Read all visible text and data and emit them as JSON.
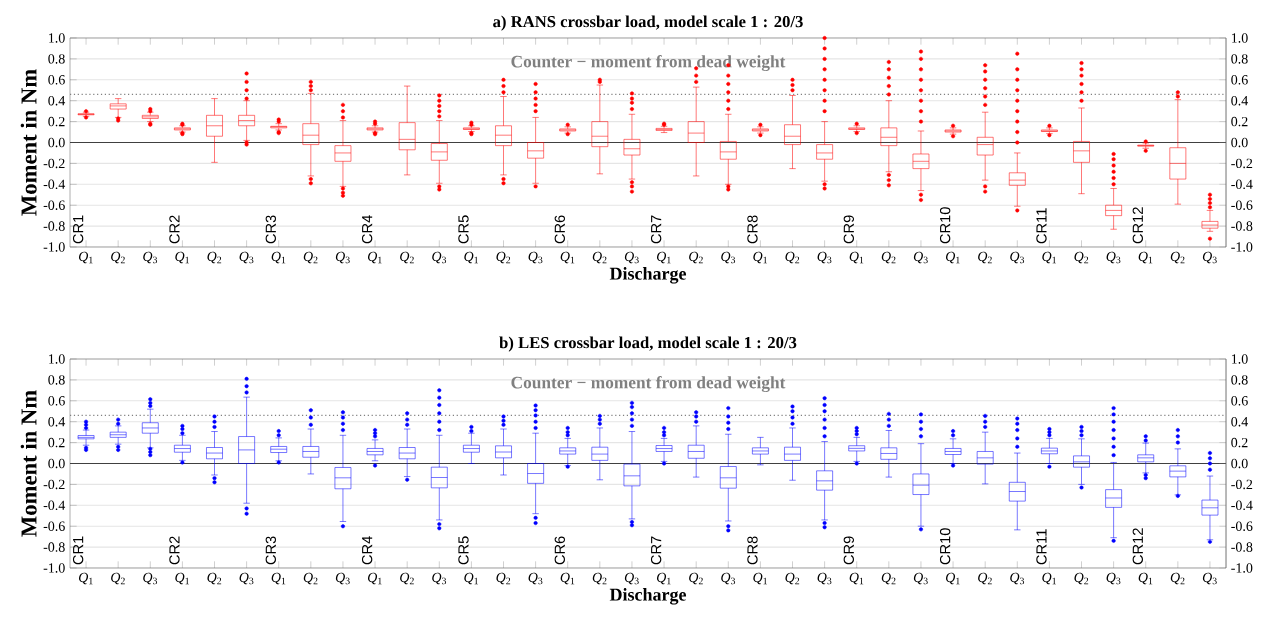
{
  "chart_data": [
    {
      "type": "box",
      "title": "a) RANS crossbar load, model scale 1 : 20/3",
      "xlabel": "Discharge",
      "ylabel": "Moment in Nm",
      "color": "#ff0000",
      "grid": "y",
      "categories": [
        "*Q*$_{1}$",
        "*Q*$_{2}$",
        "*Q*$_{3}$",
        "*Q*$_{1}$",
        "*Q*$_{2}$",
        "*Q*$_{3}$",
        "*Q*$_{1}$",
        "*Q*$_{2}$",
        "*Q*$_{3}$",
        "*Q*$_{1}$",
        "*Q*$_{2}$",
        "*Q*$_{3}$",
        "*Q*$_{1}$",
        "*Q*$_{2}$",
        "*Q*$_{3}$",
        "*Q*$_{1}$",
        "*Q*$_{2}$",
        "*Q*$_{3}$",
        "*Q*$_{1}$",
        "*Q*$_{2}$",
        "*Q*$_{3}$",
        "*Q*$_{1}$",
        "*Q*$_{2}$",
        "*Q*$_{3}$",
        "*Q*$_{1}$",
        "*Q*$_{2}$",
        "*Q*$_{3}$",
        "*Q*$_{1}$",
        "*Q*$_{2}$",
        "*Q*$_{3}$",
        "*Q*$_{1}$",
        "*Q*$_{2}$",
        "*Q*$_{3}$",
        "*Q*$_{1}$",
        "*Q*$_{2}$",
        "*Q*$_{3}$"
      ],
      "boxes": [
        {
          "low": 0.25,
          "q1": 0.265,
          "median": 0.27,
          "q3": 0.275,
          "high": 0.29,
          "outliers": [
            0.24,
            0.3
          ]
        },
        {
          "low": 0.24,
          "q1": 0.32,
          "median": 0.35,
          "q3": 0.37,
          "high": 0.42,
          "outliers": [
            0.21,
            0.23
          ]
        },
        {
          "low": 0.2,
          "q1": 0.23,
          "median": 0.245,
          "q3": 0.26,
          "high": 0.29,
          "outliers": [
            0.17,
            0.18,
            0.3,
            0.32
          ]
        },
        {
          "low": 0.1,
          "q1": 0.12,
          "median": 0.13,
          "q3": 0.14,
          "high": 0.16,
          "outliers": [
            0.08,
            0.09,
            0.17,
            0.18
          ]
        },
        {
          "low": -0.19,
          "q1": 0.06,
          "median": 0.16,
          "q3": 0.26,
          "high": 0.42
        },
        {
          "low": 0.02,
          "q1": 0.16,
          "median": 0.21,
          "q3": 0.26,
          "high": 0.4,
          "outliers": [
            -0.02,
            0.0,
            0.42,
            0.5,
            0.58,
            0.66
          ]
        },
        {
          "low": 0.12,
          "q1": 0.14,
          "median": 0.15,
          "q3": 0.155,
          "high": 0.18,
          "outliers": [
            0.09,
            0.1,
            0.2,
            0.22
          ]
        },
        {
          "low": -0.32,
          "q1": -0.02,
          "median": 0.07,
          "q3": 0.18,
          "high": 0.47,
          "outliers": [
            -0.39,
            -0.35,
            0.5,
            0.54,
            0.58
          ]
        },
        {
          "low": -0.42,
          "q1": -0.18,
          "median": -0.1,
          "q3": -0.03,
          "high": 0.21,
          "outliers": [
            -0.51,
            -0.48,
            -0.44,
            0.24,
            0.3,
            0.36
          ]
        },
        {
          "low": 0.1,
          "q1": 0.12,
          "median": 0.13,
          "q3": 0.14,
          "high": 0.16,
          "outliers": [
            0.08,
            0.09,
            0.18,
            0.2
          ]
        },
        {
          "low": -0.31,
          "q1": -0.07,
          "median": 0.03,
          "q3": 0.19,
          "high": 0.54
        },
        {
          "low": -0.39,
          "q1": -0.17,
          "median": -0.09,
          "q3": -0.01,
          "high": 0.21,
          "outliers": [
            -0.45,
            -0.42,
            0.25,
            0.3,
            0.35,
            0.4,
            0.45
          ]
        },
        {
          "low": 0.105,
          "q1": 0.125,
          "median": 0.13,
          "q3": 0.14,
          "high": 0.16,
          "outliers": [
            0.08,
            0.09,
            0.17,
            0.19
          ]
        },
        {
          "low": -0.31,
          "q1": -0.03,
          "median": 0.07,
          "q3": 0.16,
          "high": 0.44,
          "outliers": [
            -0.39,
            -0.35,
            0.48,
            0.54,
            0.6
          ]
        },
        {
          "low": -0.39,
          "q1": -0.15,
          "median": -0.08,
          "q3": 0.0,
          "high": 0.24,
          "outliers": [
            -0.42,
            0.3,
            0.36,
            0.42,
            0.48,
            0.56
          ]
        },
        {
          "low": 0.09,
          "q1": 0.11,
          "median": 0.12,
          "q3": 0.13,
          "high": 0.15,
          "outliers": [
            0.08,
            0.17
          ]
        },
        {
          "low": -0.3,
          "q1": -0.04,
          "median": 0.06,
          "q3": 0.2,
          "high": 0.55,
          "outliers": [
            0.58,
            0.6
          ]
        },
        {
          "low": -0.35,
          "q1": -0.12,
          "median": -0.06,
          "q3": 0.03,
          "high": 0.27,
          "outliers": [
            -0.47,
            -0.42,
            -0.38,
            0.32,
            0.38,
            0.42,
            0.47
          ]
        },
        {
          "low": 0.095,
          "q1": 0.115,
          "median": 0.125,
          "q3": 0.135,
          "high": 0.155,
          "outliers": [
            0.17,
            0.18
          ]
        },
        {
          "low": -0.32,
          "q1": 0.0,
          "median": 0.09,
          "q3": 0.2,
          "high": 0.53,
          "outliers": [
            0.58,
            0.64,
            0.71
          ]
        },
        {
          "low": -0.4,
          "q1": -0.16,
          "median": -0.09,
          "q3": 0.01,
          "high": 0.27,
          "outliers": [
            -0.45,
            -0.42,
            0.32,
            0.4,
            0.48,
            0.56,
            0.64,
            0.74
          ]
        },
        {
          "low": 0.09,
          "q1": 0.11,
          "median": 0.12,
          "q3": 0.13,
          "high": 0.15,
          "outliers": [
            0.07,
            0.17
          ]
        },
        {
          "low": -0.25,
          "q1": -0.02,
          "median": 0.06,
          "q3": 0.17,
          "high": 0.45,
          "outliers": [
            0.5,
            0.55,
            0.6
          ]
        },
        {
          "low": -0.37,
          "q1": -0.16,
          "median": -0.1,
          "q3": -0.02,
          "high": 0.2,
          "outliers": [
            -0.44,
            -0.4,
            0.3,
            0.4,
            0.5,
            0.6,
            0.7,
            0.8,
            0.9,
            1.0
          ]
        },
        {
          "low": 0.105,
          "q1": 0.125,
          "median": 0.13,
          "q3": 0.14,
          "high": 0.16,
          "outliers": [
            0.09,
            0.18
          ]
        },
        {
          "low": -0.28,
          "q1": -0.03,
          "median": 0.05,
          "q3": 0.14,
          "high": 0.4,
          "outliers": [
            -0.41,
            -0.36,
            -0.31,
            0.46,
            0.54,
            0.62,
            0.7,
            0.77
          ]
        },
        {
          "low": -0.46,
          "q1": -0.25,
          "median": -0.18,
          "q3": -0.11,
          "high": 0.11,
          "outliers": [
            -0.55,
            -0.5,
            0.2,
            0.3,
            0.4,
            0.5,
            0.6,
            0.7,
            0.8,
            0.87
          ]
        },
        {
          "low": 0.08,
          "q1": 0.1,
          "median": 0.11,
          "q3": 0.12,
          "high": 0.14,
          "outliers": [
            0.06,
            0.16
          ]
        },
        {
          "low": -0.36,
          "q1": -0.12,
          "median": -0.02,
          "q3": 0.05,
          "high": 0.29,
          "outliers": [
            -0.47,
            -0.42,
            0.36,
            0.44,
            0.52,
            0.6,
            0.68,
            0.74
          ]
        },
        {
          "low": -0.61,
          "q1": -0.41,
          "median": -0.36,
          "q3": -0.29,
          "high": -0.1,
          "outliers": [
            -0.65,
            0.0,
            0.1,
            0.2,
            0.3,
            0.4,
            0.5,
            0.6,
            0.7,
            0.85
          ]
        },
        {
          "low": 0.085,
          "q1": 0.105,
          "median": 0.11,
          "q3": 0.12,
          "high": 0.14,
          "outliers": [
            0.07,
            0.16
          ]
        },
        {
          "low": -0.49,
          "q1": -0.19,
          "median": -0.08,
          "q3": 0.01,
          "high": 0.33,
          "outliers": [
            0.4,
            0.48,
            0.56,
            0.64,
            0.7,
            0.76
          ]
        },
        {
          "low": -0.83,
          "q1": -0.7,
          "median": -0.65,
          "q3": -0.6,
          "high": -0.44,
          "outliers": [
            -0.4,
            -0.34,
            -0.28,
            -0.22,
            -0.16,
            -0.11
          ]
        },
        {
          "low": -0.055,
          "q1": -0.035,
          "median": -0.03,
          "q3": -0.025,
          "high": -0.005,
          "outliers": [
            -0.08,
            0.01
          ]
        },
        {
          "low": -0.59,
          "q1": -0.35,
          "median": -0.2,
          "q3": -0.05,
          "high": 0.41,
          "outliers": [
            0.44,
            0.48
          ]
        },
        {
          "low": -0.85,
          "q1": -0.82,
          "median": -0.79,
          "q3": -0.755,
          "high": -0.65,
          "outliers": [
            -0.92,
            -0.62,
            -0.58,
            -0.54,
            -0.5
          ]
        }
      ],
      "ylim": [
        -1,
        1
      ],
      "yticks": [
        {
          "value": -1,
          "label": "-1.0"
        },
        {
          "value": -0.8,
          "label": "-0.8"
        },
        {
          "value": -0.6,
          "label": "-0.6"
        },
        {
          "value": -0.4,
          "label": "-0.4"
        },
        {
          "value": -0.2,
          "label": "-0.2"
        },
        {
          "value": 0,
          "label": "0.0"
        },
        {
          "value": 0.2,
          "label": "0.2"
        },
        {
          "value": 0.4,
          "label": "0.4"
        },
        {
          "value": 0.6,
          "label": "0.6"
        },
        {
          "value": 0.8,
          "label": "0.8"
        },
        {
          "value": 1,
          "label": "1.0"
        }
      ],
      "y2lim": [
        -1,
        1
      ],
      "y2ticks": [
        {
          "value": -1,
          "label": "-1.0"
        },
        {
          "value": -0.8,
          "label": "-0.8"
        },
        {
          "value": -0.6,
          "label": "-0.6"
        },
        {
          "value": -0.4,
          "label": "-0.4"
        },
        {
          "value": -0.2,
          "label": "-0.2"
        },
        {
          "value": 0,
          "label": "0.0"
        },
        {
          "value": 0.2,
          "label": "0.2"
        },
        {
          "value": 0.4,
          "label": "0.4"
        },
        {
          "value": 0.6,
          "label": "0.6"
        },
        {
          "value": 0.8,
          "label": "0.8"
        },
        {
          "value": 1,
          "label": "1.0"
        }
      ],
      "ref_lines": [
        {
          "axis": "y",
          "value": 0,
          "color": "#404040",
          "line_style": "solid"
        },
        {
          "axis": "y",
          "value": 0.46,
          "label": "Counter − moment from dead weight",
          "color": "#808080",
          "line_style": "dotted"
        }
      ],
      "annotations": [
        "CR1",
        "CR2",
        "CR3",
        "CR4",
        "CR5",
        "CR6",
        "CR7",
        "CR8",
        "CR9",
        "CR10",
        "CR11",
        "CR12"
      ]
    },
    {
      "type": "box",
      "title": "b) LES crossbar load, model scale 1 : 20/3",
      "xlabel": "Discharge",
      "ylabel": "Moment in Nm",
      "color": "#0000ff",
      "grid": "y",
      "categories": [
        "*Q*$_{1}$",
        "*Q*$_{2}$",
        "*Q*$_{3}$",
        "*Q*$_{1}$",
        "*Q*$_{2}$",
        "*Q*$_{3}$",
        "*Q*$_{1}$",
        "*Q*$_{2}$",
        "*Q*$_{3}$",
        "*Q*$_{1}$",
        "*Q*$_{2}$",
        "*Q*$_{3}$",
        "*Q*$_{1}$",
        "*Q*$_{2}$",
        "*Q*$_{3}$",
        "*Q*$_{1}$",
        "*Q*$_{2}$",
        "*Q*$_{3}$",
        "*Q*$_{1}$",
        "*Q*$_{2}$",
        "*Q*$_{3}$",
        "*Q*$_{1}$",
        "*Q*$_{2}$",
        "*Q*$_{3}$",
        "*Q*$_{1}$",
        "*Q*$_{2}$",
        "*Q*$_{3}$",
        "*Q*$_{1}$",
        "*Q*$_{2}$",
        "*Q*$_{3}$",
        "*Q*$_{1}$",
        "*Q*$_{2}$",
        "*Q*$_{3}$",
        "*Q*$_{1}$",
        "*Q*$_{2}$",
        "*Q*$_{3}$"
      ],
      "boxes": [
        {
          "low": 0.175,
          "q1": 0.236,
          "median": 0.25,
          "q3": 0.268,
          "high": 0.32,
          "outliers": [
            0.13,
            0.15,
            0.34,
            0.37,
            0.4
          ]
        },
        {
          "low": 0.185,
          "q1": 0.25,
          "median": 0.275,
          "q3": 0.3,
          "high": 0.36,
          "outliers": [
            0.13,
            0.16,
            0.38,
            0.42
          ]
        },
        {
          "low": 0.15,
          "q1": 0.29,
          "median": 0.34,
          "q3": 0.39,
          "high": 0.52,
          "outliers": [
            0.08,
            0.11,
            0.14,
            0.55,
            0.58,
            0.615
          ]
        },
        {
          "low": 0.03,
          "q1": 0.108,
          "median": 0.143,
          "q3": 0.175,
          "high": 0.27,
          "outliers": [
            0.01,
            0.29,
            0.33,
            0.36
          ]
        },
        {
          "low": -0.11,
          "q1": 0.045,
          "median": 0.1,
          "q3": 0.153,
          "high": 0.306,
          "outliers": [
            -0.18,
            -0.14,
            0.35,
            0.4,
            0.45
          ]
        },
        {
          "low": -0.38,
          "q1": 0.0,
          "median": 0.13,
          "q3": 0.258,
          "high": 0.635,
          "outliers": [
            -0.48,
            -0.43,
            0.68,
            0.74,
            0.81
          ]
        },
        {
          "low": 0.026,
          "q1": 0.105,
          "median": 0.137,
          "q3": 0.163,
          "high": 0.245,
          "outliers": [
            0.01,
            0.27,
            0.31
          ]
        },
        {
          "low": -0.1,
          "q1": 0.06,
          "median": 0.115,
          "q3": 0.163,
          "high": 0.33,
          "outliers": [
            0.37,
            0.44,
            0.51
          ]
        },
        {
          "low": -0.555,
          "q1": -0.242,
          "median": -0.137,
          "q3": -0.038,
          "high": 0.27,
          "outliers": [
            -0.6,
            0.32,
            0.38,
            0.44,
            0.49
          ]
        },
        {
          "low": 0.026,
          "q1": 0.083,
          "median": 0.115,
          "q3": 0.144,
          "high": 0.226,
          "outliers": [
            -0.02,
            0.26,
            0.29,
            0.32
          ]
        },
        {
          "low": -0.125,
          "q1": 0.045,
          "median": 0.1,
          "q3": 0.153,
          "high": 0.33,
          "outliers": [
            -0.155,
            0.37,
            0.42,
            0.48
          ]
        },
        {
          "low": -0.54,
          "q1": -0.233,
          "median": -0.134,
          "q3": -0.035,
          "high": 0.27,
          "outliers": [
            -0.62,
            -0.58,
            0.32,
            0.4,
            0.48,
            0.56,
            0.63,
            0.7
          ]
        },
        {
          "low": 0.0,
          "q1": 0.108,
          "median": 0.143,
          "q3": 0.175,
          "high": 0.29,
          "outliers": [
            0.31,
            0.35
          ]
        },
        {
          "low": -0.11,
          "q1": 0.054,
          "median": 0.11,
          "q3": 0.169,
          "high": 0.33,
          "outliers": [
            0.37,
            0.41,
            0.45
          ]
        },
        {
          "low": -0.48,
          "q1": -0.19,
          "median": -0.096,
          "q3": 0.0,
          "high": 0.29,
          "outliers": [
            -0.57,
            -0.52,
            0.34,
            0.4,
            0.46,
            0.51,
            0.555
          ]
        },
        {
          "low": -0.02,
          "q1": 0.09,
          "median": 0.12,
          "q3": 0.15,
          "high": 0.24,
          "outliers": [
            -0.03,
            0.27,
            0.3,
            0.34
          ]
        },
        {
          "low": -0.156,
          "q1": 0.03,
          "median": 0.09,
          "q3": 0.156,
          "high": 0.34,
          "outliers": [
            0.38,
            0.42,
            0.455
          ]
        },
        {
          "low": -0.53,
          "q1": -0.214,
          "median": -0.118,
          "q3": -0.006,
          "high": 0.306,
          "outliers": [
            -0.59,
            -0.56,
            0.36,
            0.42,
            0.48,
            0.54,
            0.58
          ]
        },
        {
          "low": 0.02,
          "q1": 0.115,
          "median": 0.143,
          "q3": 0.172,
          "high": 0.24,
          "outliers": [
            0.0,
            0.27,
            0.3,
            0.34
          ]
        },
        {
          "low": -0.13,
          "q1": 0.05,
          "median": 0.115,
          "q3": 0.175,
          "high": 0.36,
          "outliers": [
            0.4,
            0.45,
            0.49
          ]
        },
        {
          "low": -0.55,
          "q1": -0.236,
          "median": -0.137,
          "q3": -0.029,
          "high": 0.28,
          "outliers": [
            -0.64,
            -0.6,
            0.33,
            0.39,
            0.45,
            0.53
          ]
        },
        {
          "low": -0.013,
          "q1": 0.09,
          "median": 0.12,
          "q3": 0.15,
          "high": 0.25
        },
        {
          "low": -0.16,
          "q1": 0.03,
          "median": 0.09,
          "q3": 0.156,
          "high": 0.34,
          "outliers": [
            0.38,
            0.44,
            0.5,
            0.545
          ]
        },
        {
          "low": -0.54,
          "q1": -0.255,
          "median": -0.166,
          "q3": -0.07,
          "high": 0.21,
          "outliers": [
            -0.61,
            -0.57,
            0.26,
            0.34,
            0.42,
            0.5,
            0.56,
            0.625
          ]
        },
        {
          "low": 0.02,
          "q1": 0.12,
          "median": 0.145,
          "q3": 0.17,
          "high": 0.25,
          "outliers": [
            0.0,
            0.28,
            0.31,
            0.34
          ]
        },
        {
          "low": -0.13,
          "q1": 0.04,
          "median": 0.096,
          "q3": 0.15,
          "high": 0.316,
          "outliers": [
            0.36,
            0.42,
            0.475
          ]
        },
        {
          "low": -0.6,
          "q1": -0.297,
          "median": -0.207,
          "q3": -0.1,
          "high": 0.19,
          "outliers": [
            -0.63,
            0.26,
            0.33,
            0.4,
            0.47
          ]
        },
        {
          "low": 0.0,
          "q1": 0.086,
          "median": 0.115,
          "q3": 0.144,
          "high": 0.236,
          "outliers": [
            -0.02,
            0.27,
            0.31
          ]
        },
        {
          "low": -0.195,
          "q1": -0.006,
          "median": 0.054,
          "q3": 0.115,
          "high": 0.3,
          "outliers": [
            0.35,
            0.4,
            0.455
          ]
        },
        {
          "low": -0.635,
          "q1": -0.36,
          "median": -0.268,
          "q3": -0.18,
          "high": 0.1,
          "outliers": [
            0.16,
            0.24,
            0.32,
            0.38,
            0.43
          ]
        },
        {
          "low": 0.0,
          "q1": 0.093,
          "median": 0.12,
          "q3": 0.147,
          "high": 0.24,
          "outliers": [
            -0.03,
            0.27,
            0.3,
            0.33
          ]
        },
        {
          "low": -0.2,
          "q1": -0.035,
          "median": 0.016,
          "q3": 0.073,
          "high": 0.236,
          "outliers": [
            -0.23,
            0.27,
            0.31,
            0.35
          ]
        },
        {
          "low": -0.71,
          "q1": -0.42,
          "median": -0.33,
          "q3": -0.25,
          "high": 0.01,
          "outliers": [
            -0.74,
            0.08,
            0.16,
            0.24,
            0.32,
            0.4,
            0.47,
            0.53
          ]
        },
        {
          "low": -0.09,
          "q1": 0.016,
          "median": 0.054,
          "q3": 0.083,
          "high": 0.195,
          "outliers": [
            -0.14,
            -0.11,
            0.22,
            0.26
          ]
        },
        {
          "low": -0.3,
          "q1": -0.128,
          "median": -0.073,
          "q3": -0.022,
          "high": 0.14,
          "outliers": [
            -0.31,
            0.2,
            0.26,
            0.32
          ]
        },
        {
          "low": -0.73,
          "q1": -0.494,
          "median": -0.424,
          "q3": -0.35,
          "high": -0.12,
          "outliers": [
            -0.75,
            -0.06,
            0.0,
            0.05,
            0.1
          ]
        }
      ],
      "ylim": [
        -1,
        1
      ],
      "yticks": [
        {
          "value": -1,
          "label": "-1.0"
        },
        {
          "value": -0.8,
          "label": "-0.8"
        },
        {
          "value": -0.6,
          "label": "-0.6"
        },
        {
          "value": -0.4,
          "label": "-0.4"
        },
        {
          "value": -0.2,
          "label": "-0.2"
        },
        {
          "value": 0,
          "label": "0.0"
        },
        {
          "value": 0.2,
          "label": "0.2"
        },
        {
          "value": 0.4,
          "label": "0.4"
        },
        {
          "value": 0.6,
          "label": "0.6"
        },
        {
          "value": 0.8,
          "label": "0.8"
        },
        {
          "value": 1,
          "label": "1.0"
        }
      ],
      "y2lim": [
        -1,
        1
      ],
      "y2ticks": [
        {
          "value": -1,
          "label": "-1.0"
        },
        {
          "value": -0.8,
          "label": "-0.8"
        },
        {
          "value": -0.6,
          "label": "-0.6"
        },
        {
          "value": -0.4,
          "label": "-0.4"
        },
        {
          "value": -0.2,
          "label": "-0.2"
        },
        {
          "value": 0,
          "label": "0.0"
        },
        {
          "value": 0.2,
          "label": "0.2"
        },
        {
          "value": 0.4,
          "label": "0.4"
        },
        {
          "value": 0.6,
          "label": "0.6"
        },
        {
          "value": 0.8,
          "label": "0.8"
        },
        {
          "value": 1,
          "label": "1.0"
        }
      ],
      "ref_lines": [
        {
          "axis": "y",
          "value": 0,
          "color": "#404040",
          "line_style": "solid"
        },
        {
          "axis": "y",
          "value": 0.46,
          "label": "Counter − moment from dead weight",
          "color": "#808080",
          "line_style": "dotted"
        }
      ],
      "annotations": [
        "CR1",
        "CR2",
        "CR3",
        "CR4",
        "CR5",
        "CR6",
        "CR7",
        "CR8",
        "CR9",
        "CR10",
        "CR11",
        "CR12"
      ]
    }
  ]
}
